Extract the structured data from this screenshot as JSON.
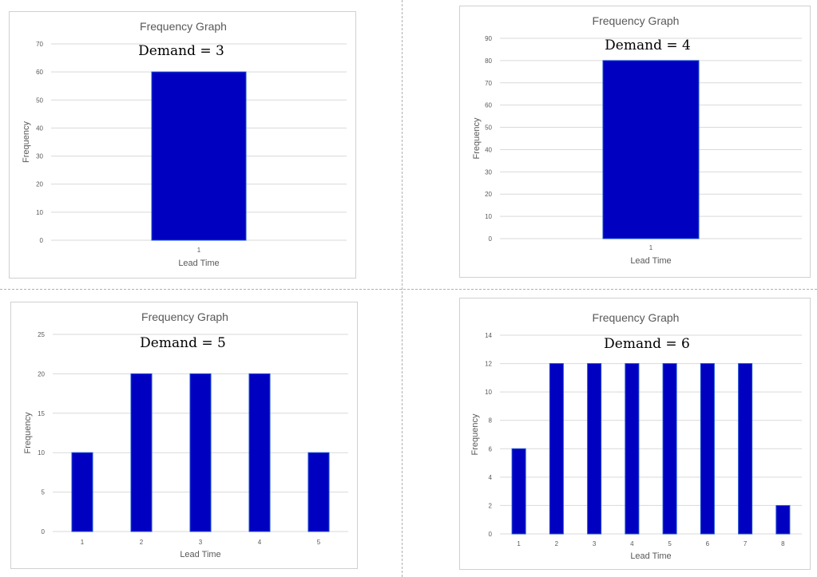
{
  "chart_data": [
    {
      "type": "bar",
      "title": "Frequency Graph",
      "annotation": "Demand = 3",
      "xlabel": "Lead Time",
      "ylabel": "Frequency",
      "ylim": [
        0,
        70
      ],
      "yticks": [
        0,
        10,
        20,
        30,
        40,
        50,
        60,
        70
      ],
      "categories": [
        "1"
      ],
      "values": [
        60
      ],
      "grid": true
    },
    {
      "type": "bar",
      "title": "Frequency Graph",
      "annotation": "Demand = 4",
      "xlabel": "Lead Time",
      "ylabel": "Frequency",
      "ylim": [
        0,
        90
      ],
      "yticks": [
        0,
        10,
        20,
        30,
        40,
        50,
        60,
        70,
        80,
        90
      ],
      "categories": [
        "1"
      ],
      "values": [
        80
      ],
      "grid": true
    },
    {
      "type": "bar",
      "title": "Frequency Graph",
      "annotation": "Demand = 5",
      "xlabel": "Lead Time",
      "ylabel": "Frequency",
      "ylim": [
        0,
        25
      ],
      "yticks": [
        0,
        5,
        10,
        15,
        20,
        25
      ],
      "categories": [
        "1",
        "2",
        "3",
        "4",
        "5"
      ],
      "values": [
        10,
        20,
        20,
        20,
        10
      ],
      "grid": true
    },
    {
      "type": "bar",
      "title": "Frequency Graph",
      "annotation": "Demand = 6",
      "xlabel": "Lead Time",
      "ylabel": "Frequency",
      "ylim": [
        0,
        14
      ],
      "yticks": [
        0,
        2,
        4,
        6,
        8,
        10,
        12,
        14
      ],
      "categories": [
        "1",
        "2",
        "3",
        "4",
        "5",
        "6",
        "7",
        "8"
      ],
      "values": [
        6,
        12,
        12,
        12,
        12,
        12,
        12,
        2
      ],
      "grid": true
    }
  ],
  "colors": {
    "bar": "#0000c0",
    "grid": "#d9d9d9",
    "text": "#595959"
  }
}
